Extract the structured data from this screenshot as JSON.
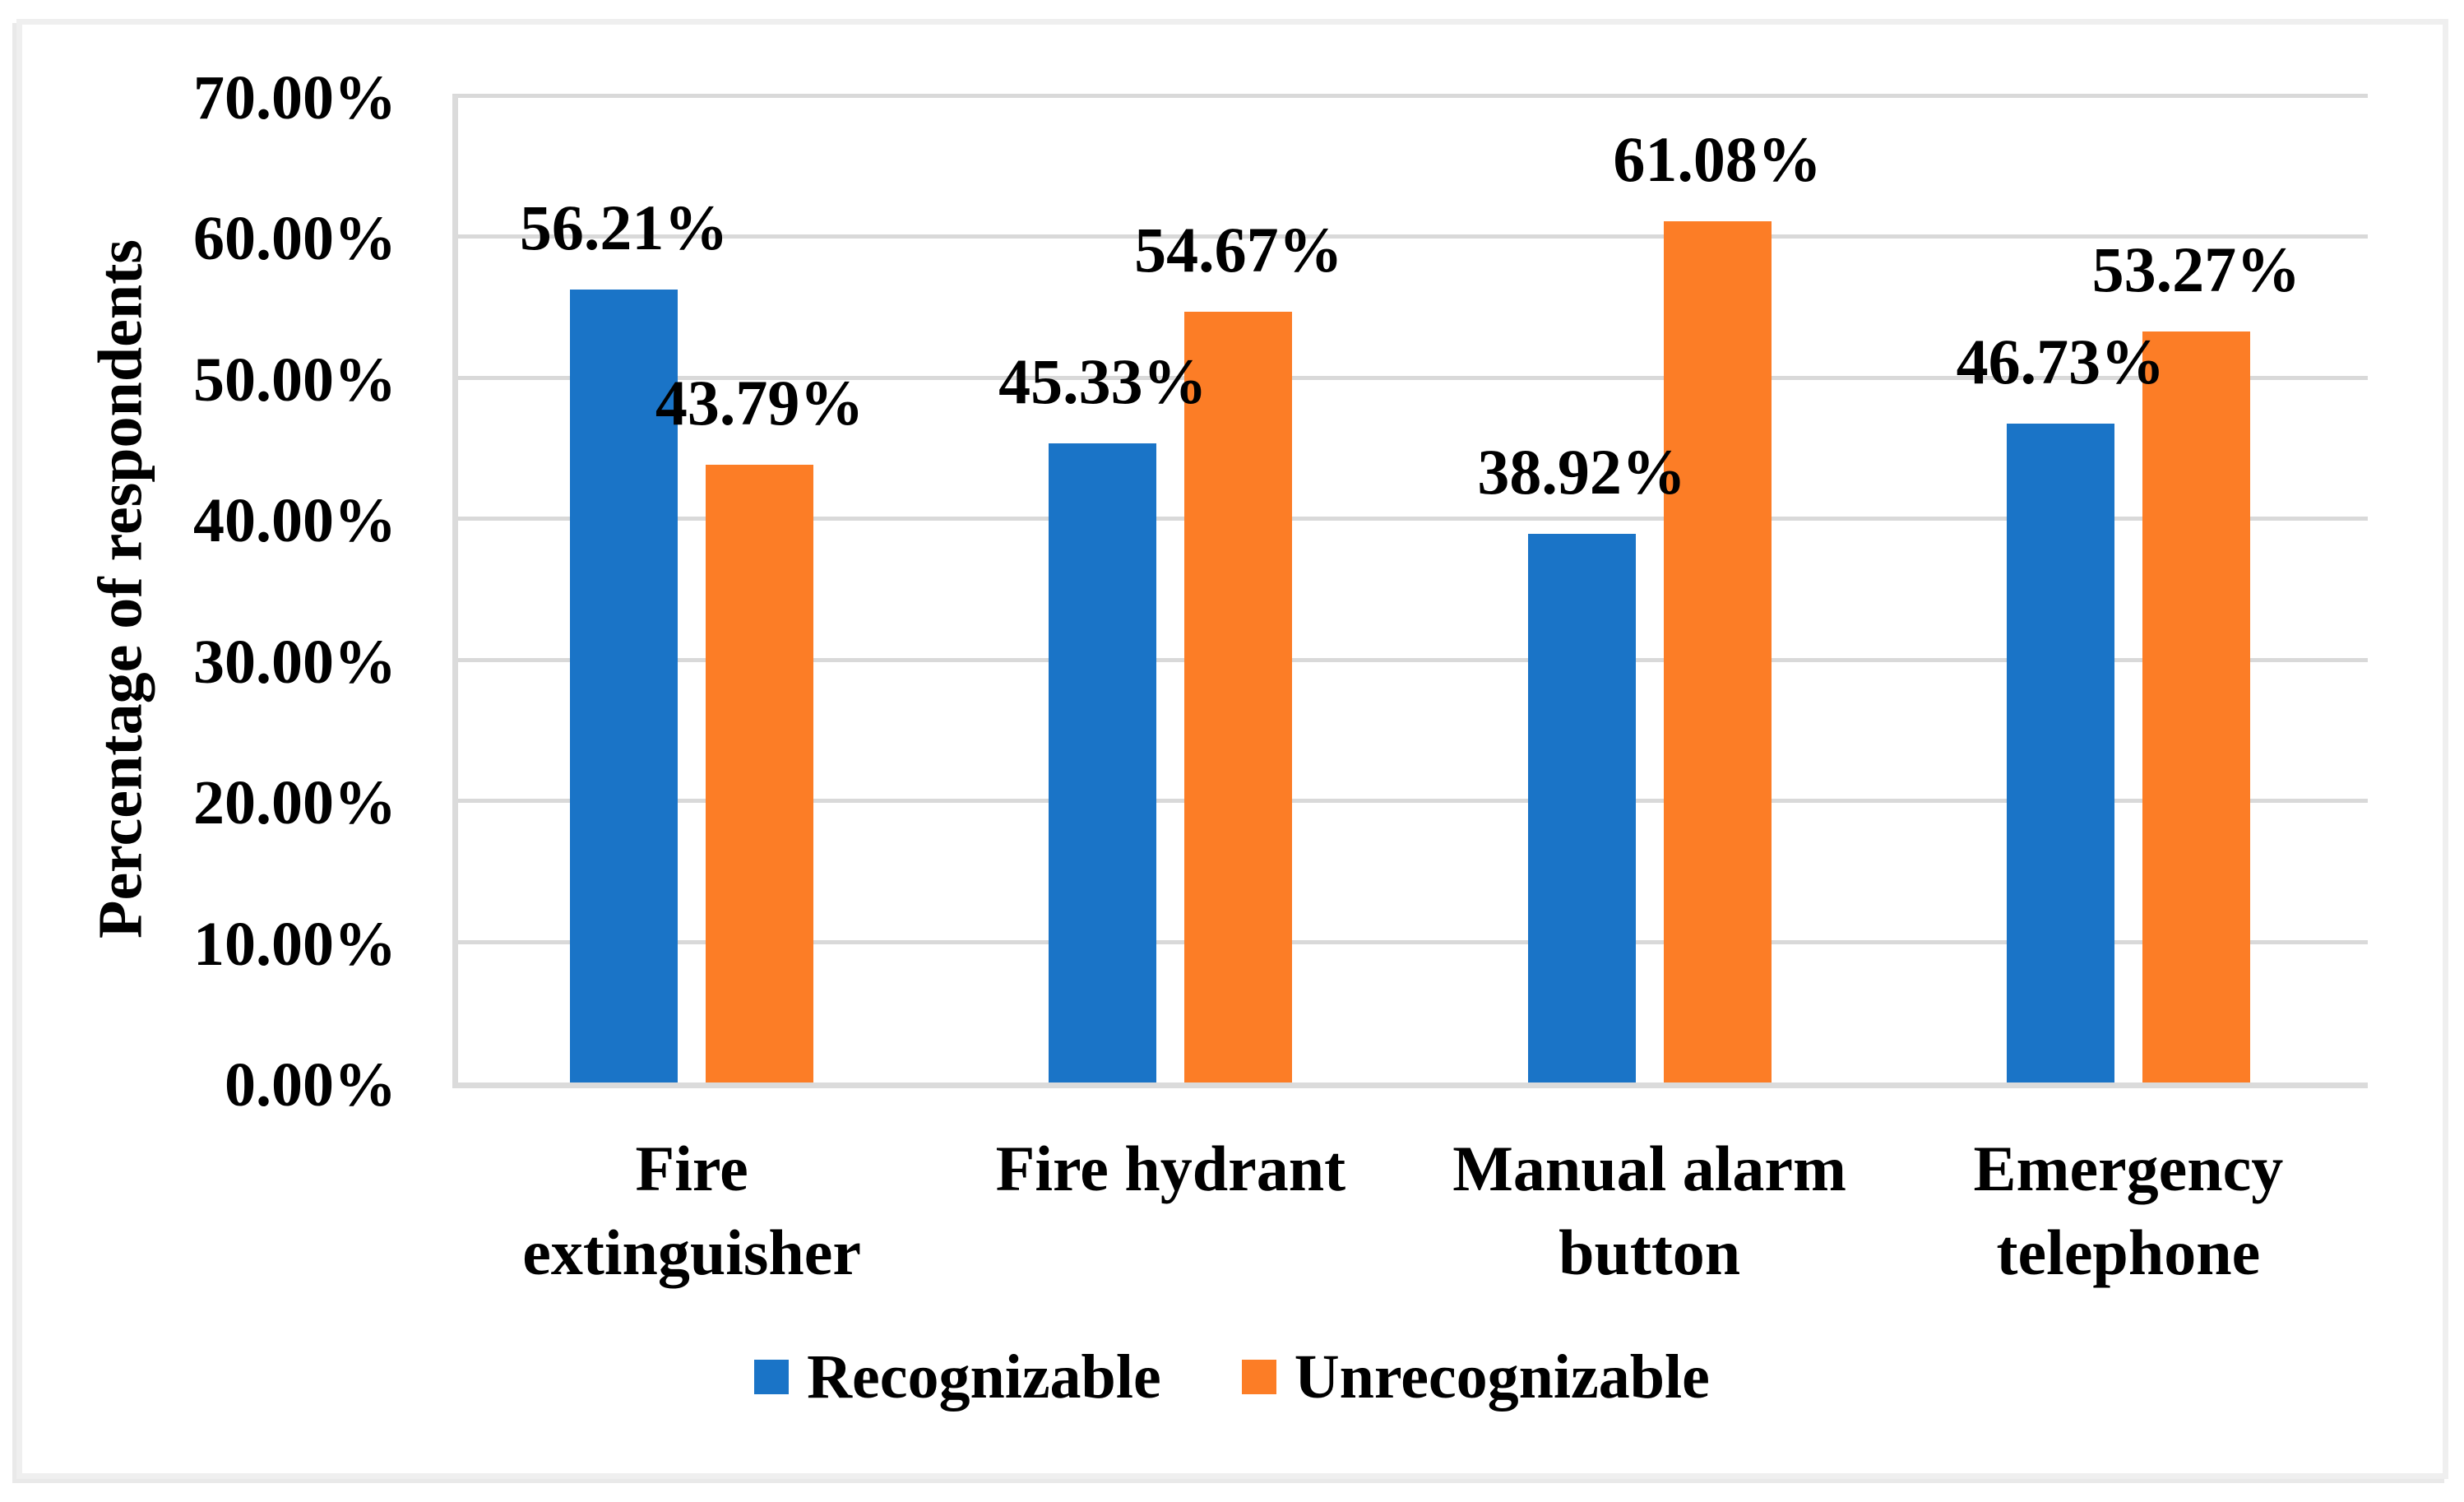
{
  "chart_data": {
    "type": "bar",
    "title": "",
    "ylabel": "Percentage of respondents",
    "xlabel": "",
    "categories": [
      "Fire\nextinguisher",
      "Fire hydrant",
      "Manual alarm\nbutton",
      "Emergency\ntelephone"
    ],
    "series": [
      {
        "name": "Recognizable",
        "color": "#1A74C7",
        "values": [
          56.21,
          45.33,
          38.92,
          46.73
        ],
        "data_labels": [
          "56.21%",
          "45.33%",
          "38.92%",
          "46.73%"
        ]
      },
      {
        "name": "Unrecognizable",
        "color": "#FC7D26",
        "values": [
          43.79,
          54.67,
          61.08,
          53.27
        ],
        "data_labels": [
          "43.79%",
          "54.67%",
          "61.08%",
          "53.27%"
        ]
      }
    ],
    "y_axis": {
      "min": 0,
      "max": 70,
      "step": 10,
      "tick_labels": [
        "0.00%",
        "10.00%",
        "20.00%",
        "30.00%",
        "40.00%",
        "50.00%",
        "60.00%",
        "70.00%"
      ]
    },
    "grid": true,
    "legend_position": "bottom",
    "colors": {
      "gridline": "#D9D9D9",
      "axis_line": "#DBDBDB",
      "text": "#000000",
      "frame_border": "#EFEFEF",
      "background": "#FFFFFF"
    }
  }
}
